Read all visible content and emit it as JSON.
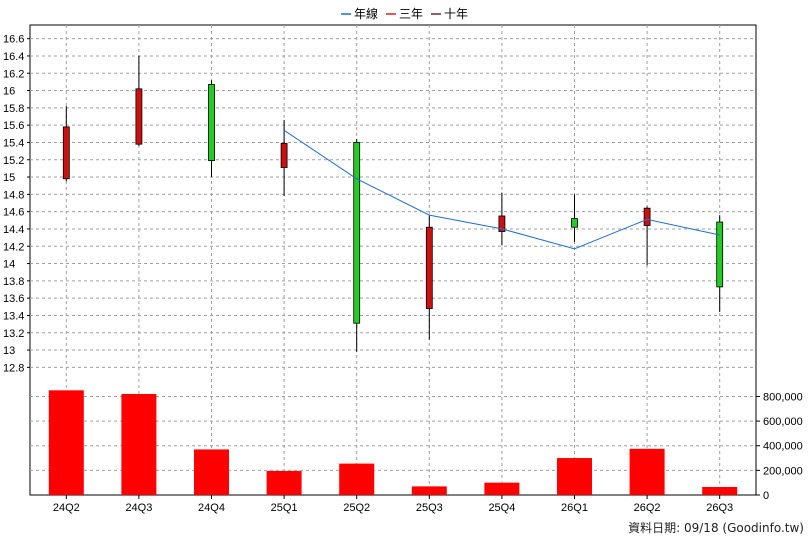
{
  "chart_data": {
    "type": "candlestick-with-volume",
    "legend": [
      {
        "name": "年線",
        "color": "#1f6fd1"
      },
      {
        "name": "三年",
        "color": "#d62020"
      },
      {
        "name": "十年",
        "color": "#7a2040"
      }
    ],
    "categories": [
      "24Q2",
      "24Q3",
      "24Q4",
      "25Q1",
      "25Q2",
      "25Q3",
      "25Q4",
      "26Q1",
      "26Q2",
      "26Q3"
    ],
    "candles": [
      {
        "open": 14.98,
        "close": 15.58,
        "high": 15.82,
        "low": 14.95,
        "color": "red"
      },
      {
        "open": 15.38,
        "close": 16.02,
        "high": 16.4,
        "low": 15.36,
        "color": "red"
      },
      {
        "open": 16.07,
        "close": 15.19,
        "high": 16.12,
        "low": 15.0,
        "color": "green"
      },
      {
        "open": 15.11,
        "close": 15.39,
        "high": 15.66,
        "low": 14.78,
        "color": "red"
      },
      {
        "open": 15.4,
        "close": 13.31,
        "high": 15.44,
        "low": 12.98,
        "color": "green"
      },
      {
        "open": 13.48,
        "close": 14.42,
        "high": 14.56,
        "low": 13.12,
        "color": "red"
      },
      {
        "open": 14.37,
        "close": 14.55,
        "high": 14.82,
        "low": 14.21,
        "color": "red"
      },
      {
        "open": 14.52,
        "close": 14.42,
        "high": 14.8,
        "low": 14.25,
        "color": "green"
      },
      {
        "open": 14.44,
        "close": 14.64,
        "high": 14.66,
        "low": 13.98,
        "color": "red"
      },
      {
        "open": 14.48,
        "close": 13.73,
        "high": 14.56,
        "low": 13.44,
        "color": "green"
      }
    ],
    "line_series": {
      "name": "年線",
      "start_index": 3,
      "values": [
        15.54,
        14.98,
        14.56,
        14.4,
        14.17,
        14.51,
        14.33
      ]
    },
    "volume": [
      850000,
      820000,
      370000,
      195000,
      255000,
      70000,
      100000,
      300000,
      375000,
      65000
    ],
    "y_price": {
      "min": 12.7,
      "max": 16.7,
      "ticks": [
        12.8,
        13,
        13.2,
        13.4,
        13.6,
        13.8,
        14,
        14.2,
        14.4,
        14.6,
        14.8,
        15,
        15.2,
        15.4,
        15.6,
        15.8,
        16,
        16.2,
        16.4,
        16.6
      ]
    },
    "y_volume": {
      "min": 0,
      "max": 950000,
      "ticks": [
        0,
        200000,
        400000,
        600000,
        800000
      ],
      "tick_labels": [
        "0",
        "200,000",
        "400,000",
        "600,000",
        "800,000"
      ]
    },
    "grid": true,
    "legend_position": "top-center"
  },
  "footer": {
    "source": "資料日期: 09/18  (Goodinfo.tw)"
  }
}
